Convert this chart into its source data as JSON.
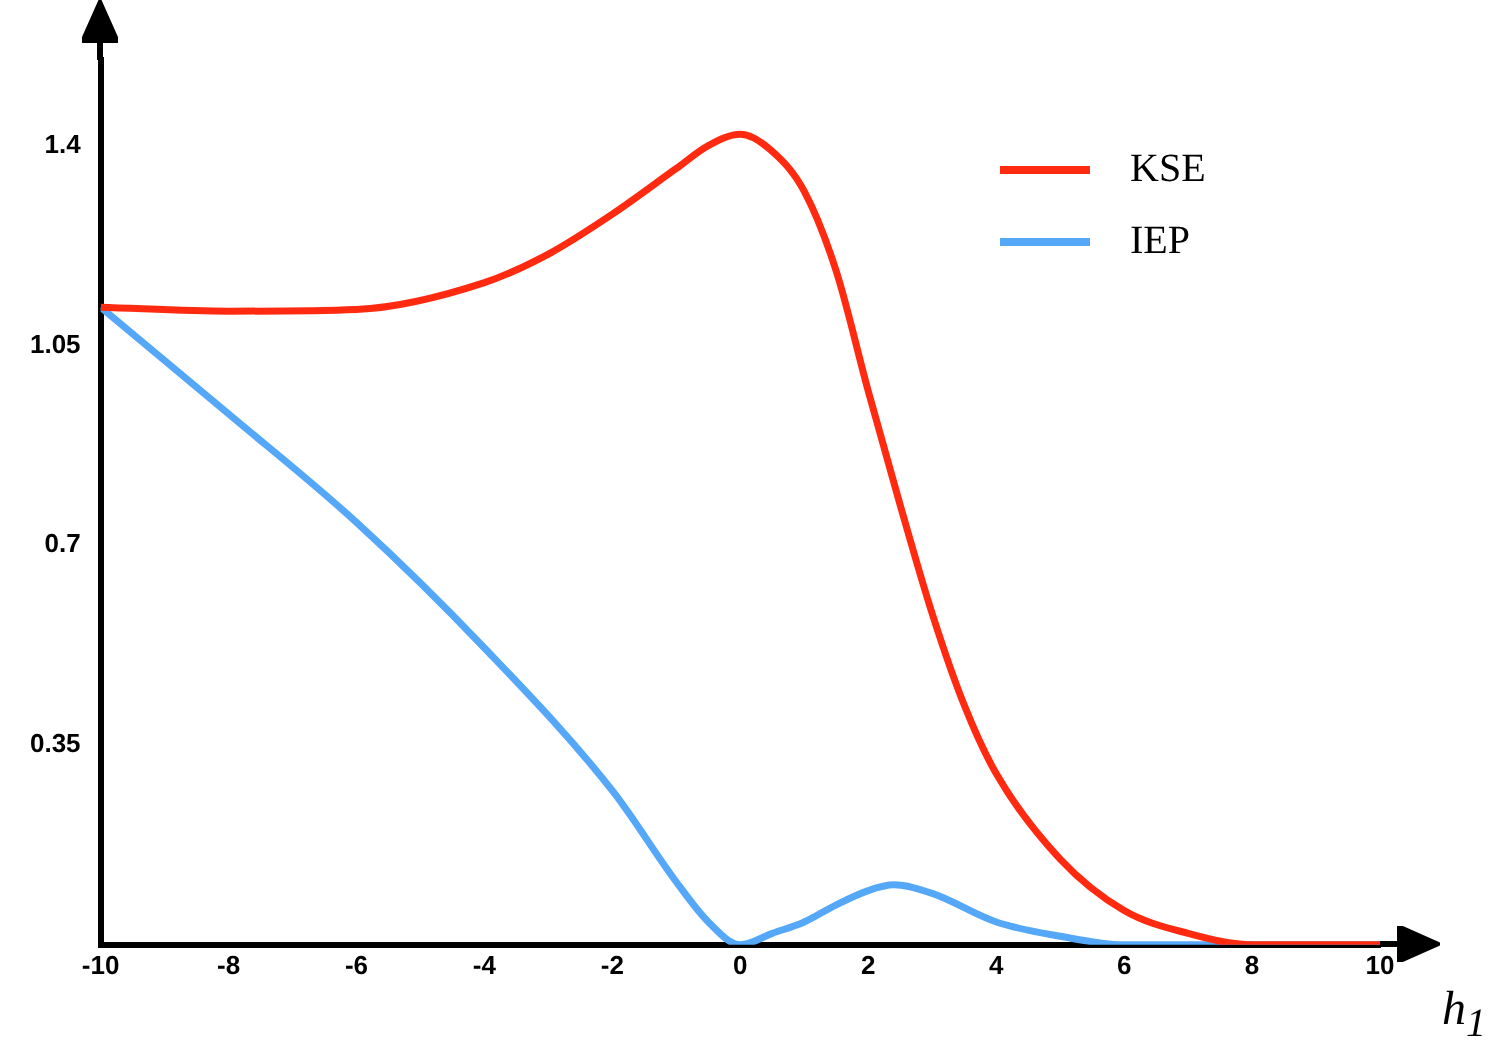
{
  "chart_data": {
    "type": "line",
    "xlabel": "h$_{1}$",
    "xlim": [
      -10,
      10
    ],
    "xticks": [
      -10,
      -8,
      -6,
      -4,
      -2,
      0,
      2,
      4,
      6,
      8,
      10
    ],
    "ylim": [
      0,
      1.55
    ],
    "yticks": [
      0.35,
      0.7,
      1.05,
      1.4
    ],
    "grid": false,
    "legend": "top right",
    "marker": "none",
    "line_style": "solid",
    "series": [
      {
        "name": "KSE",
        "color": "#ff2a10",
        "x": [
          -10,
          -8,
          -6,
          -4,
          -3,
          -2,
          -1,
          -0.5,
          0,
          0.5,
          1,
          1.5,
          2,
          2.5,
          3,
          3.5,
          4,
          5,
          6,
          7,
          8,
          9,
          10
        ],
        "values": [
          1.117,
          1.11,
          1.113,
          1.16,
          1.21,
          1.28,
          1.36,
          1.4,
          1.42,
          1.39,
          1.32,
          1.18,
          0.97,
          0.77,
          0.58,
          0.42,
          0.3,
          0.15,
          0.06,
          0.02,
          0,
          0,
          0
        ]
      },
      {
        "name": "IEP",
        "color": "#55a8f8",
        "x": [
          -10,
          -8,
          -6,
          -4,
          -2,
          -1,
          -0.5,
          0,
          0.5,
          1,
          1.5,
          2,
          2.4,
          3,
          4,
          5,
          6,
          8,
          10
        ],
        "values": [
          1.117,
          0.93,
          0.74,
          0.52,
          0.27,
          0.11,
          0.04,
          0,
          0.02,
          0.04,
          0.07,
          0.095,
          0.105,
          0.09,
          0.04,
          0.015,
          0,
          0,
          0
        ]
      }
    ]
  }
}
